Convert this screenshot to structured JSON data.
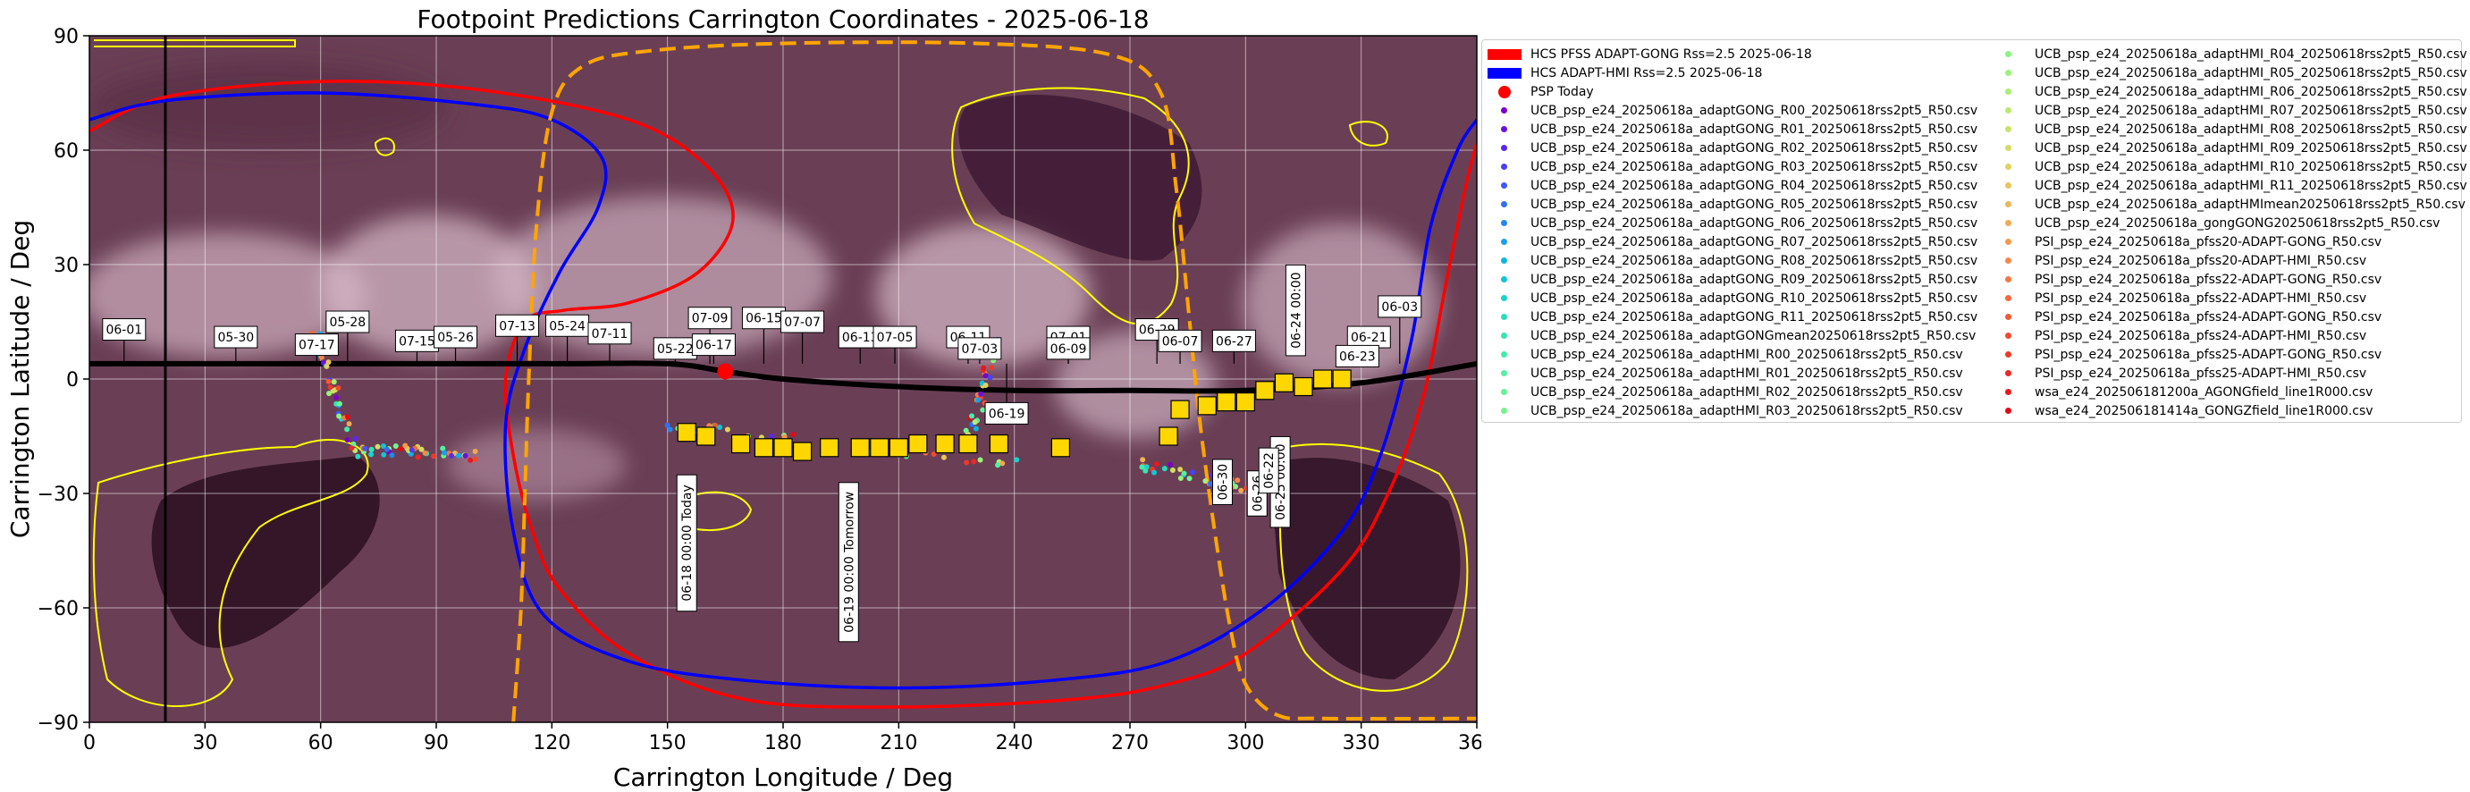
{
  "chart_data": {
    "type": "scatter",
    "title": "Footpoint Predictions Carrington Coordinates - 2025-06-18",
    "xlabel": "Carrington Longitude / Deg",
    "ylabel": "Carrington Latitude / Deg",
    "xlim": [
      0,
      360
    ],
    "ylim": [
      -90,
      90
    ],
    "xticks": [
      "0",
      "30",
      "60",
      "90",
      "120",
      "150",
      "180",
      "210",
      "240",
      "270",
      "300",
      "330",
      "360"
    ],
    "yticks": [
      "90",
      "60",
      "30",
      "0",
      "−30",
      "−60",
      "−90"
    ],
    "grid": true,
    "background": "coronal EUV synoptic map with yellow coronal-hole contours",
    "colors": {
      "hcs_gong": "#ff0000",
      "hcs_hmi": "#0000ff",
      "hcs_dashed": "#ffa500",
      "psp_today": "#ff0000",
      "markers": "#ffd700",
      "contours": "#ffff00"
    },
    "hcs_lines": [
      {
        "name": "HCS PFSS ADAPT-GONG Rss=2.5 2025-06-18",
        "color": "#ff0000",
        "points": [
          [
            0,
            65
          ],
          [
            20,
            74
          ],
          [
            60,
            78
          ],
          [
            100,
            76
          ],
          [
            140,
            68
          ],
          [
            160,
            56
          ],
          [
            167,
            42
          ],
          [
            158,
            28
          ],
          [
            140,
            20
          ],
          [
            123,
            18
          ],
          [
            113,
            15
          ],
          [
            108,
            0
          ],
          [
            110,
            -20
          ],
          [
            115,
            -40
          ],
          [
            122,
            -55
          ],
          [
            140,
            -72
          ],
          [
            170,
            -84
          ],
          [
            210,
            -86
          ],
          [
            255,
            -84
          ],
          [
            280,
            -80
          ],
          [
            300,
            -72
          ],
          [
            325,
            -50
          ],
          [
            337,
            -30
          ],
          [
            346,
            -5
          ],
          [
            352,
            25
          ],
          [
            357,
            50
          ],
          [
            360,
            62
          ]
        ]
      },
      {
        "name": "HCS ADAPT-HMI Rss=2.5 2025-06-18",
        "color": "#0000ff",
        "points": [
          [
            0,
            68
          ],
          [
            20,
            73
          ],
          [
            60,
            75
          ],
          [
            100,
            72
          ],
          [
            120,
            68
          ],
          [
            133,
            58
          ],
          [
            132,
            45
          ],
          [
            122,
            28
          ],
          [
            113,
            8
          ],
          [
            108,
            -12
          ],
          [
            110,
            -40
          ],
          [
            118,
            -62
          ],
          [
            140,
            -74
          ],
          [
            170,
            -79
          ],
          [
            210,
            -81
          ],
          [
            250,
            -79
          ],
          [
            280,
            -74
          ],
          [
            305,
            -60
          ],
          [
            325,
            -40
          ],
          [
            335,
            -20
          ],
          [
            343,
            10
          ],
          [
            348,
            40
          ],
          [
            355,
            60
          ],
          [
            360,
            68
          ]
        ]
      },
      {
        "name": "",
        "color": "#ffa500",
        "dashed": true,
        "points": [
          [
            110,
            -90
          ],
          [
            112,
            -60
          ],
          [
            113,
            -30
          ],
          [
            114,
            0
          ],
          [
            116,
            40
          ],
          [
            120,
            70
          ],
          [
            128,
            82
          ],
          [
            145,
            86
          ],
          [
            180,
            88
          ],
          [
            230,
            88
          ],
          [
            265,
            85
          ],
          [
            278,
            75
          ],
          [
            282,
            50
          ],
          [
            285,
            20
          ],
          [
            288,
            -10
          ],
          [
            292,
            -40
          ],
          [
            296,
            -65
          ],
          [
            300,
            -80
          ],
          [
            308,
            -88
          ],
          [
            320,
            -89
          ],
          [
            360,
            -89
          ]
        ]
      }
    ],
    "psp_today": [
      165,
      2
    ],
    "psp_track": [
      [
        0,
        4
      ],
      [
        60,
        4
      ],
      [
        120,
        4
      ],
      [
        150,
        4
      ],
      [
        165,
        2
      ],
      [
        180,
        0
      ],
      [
        210,
        -2
      ],
      [
        240,
        -3
      ],
      [
        270,
        -3
      ],
      [
        300,
        -3
      ],
      [
        330,
        -1
      ],
      [
        360,
        4
      ]
    ],
    "date_labels": [
      {
        "text": "06-01",
        "x": 9,
        "y": 13
      },
      {
        "text": "05-30",
        "x": 38,
        "y": 11
      },
      {
        "text": "05-28",
        "x": 67,
        "y": 15
      },
      {
        "text": "07-17",
        "x": 59,
        "y": 9
      },
      {
        "text": "07-15",
        "x": 85,
        "y": 10
      },
      {
        "text": "05-26",
        "x": 95,
        "y": 11
      },
      {
        "text": "07-13",
        "x": 111,
        "y": 14
      },
      {
        "text": "05-24",
        "x": 124,
        "y": 14
      },
      {
        "text": "07-11",
        "x": 135,
        "y": 12
      },
      {
        "text": "05-22",
        "x": 152,
        "y": 8
      },
      {
        "text": "07-09",
        "x": 161,
        "y": 16
      },
      {
        "text": "06-17",
        "x": 162,
        "y": 9
      },
      {
        "text": "06-15",
        "x": 175,
        "y": 16
      },
      {
        "text": "07-07",
        "x": 185,
        "y": 15
      },
      {
        "text": "06-13",
        "x": 200,
        "y": 11
      },
      {
        "text": "07-05",
        "x": 209,
        "y": 11
      },
      {
        "text": "06-11",
        "x": 228,
        "y": 11
      },
      {
        "text": "07-03",
        "x": 231,
        "y": 8
      },
      {
        "text": "07-01",
        "x": 254,
        "y": 11
      },
      {
        "text": "06-09",
        "x": 254,
        "y": 8
      },
      {
        "text": "06-29",
        "x": 277,
        "y": 13
      },
      {
        "text": "06-07",
        "x": 283,
        "y": 10
      },
      {
        "text": "06-27",
        "x": 297,
        "y": 10
      },
      {
        "text": "06-21",
        "x": 332,
        "y": 11
      },
      {
        "text": "06-23",
        "x": 329,
        "y": 6
      },
      {
        "text": "06-03",
        "x": 340,
        "y": 19
      },
      {
        "text": "06-19",
        "x": 238,
        "y": -9
      }
    ],
    "vertical_labels": [
      {
        "text": "06-18 00:00 Today",
        "x": 155,
        "y": -43
      },
      {
        "text": "06-19 00:00 Tomorrow",
        "x": 197,
        "y": -48
      },
      {
        "text": "06-24 00:00",
        "x": 313,
        "y": 18
      },
      {
        "text": "06-30",
        "x": 294,
        "y": -27
      },
      {
        "text": "06-26",
        "x": 303,
        "y": -30
      },
      {
        "text": "06-25 00:00",
        "x": 309,
        "y": -27
      },
      {
        "text": "06-22",
        "x": 306,
        "y": -24
      }
    ],
    "markers": [
      [
        155,
        -14
      ],
      [
        160,
        -15
      ],
      [
        169,
        -17
      ],
      [
        175,
        -18
      ],
      [
        180,
        -18
      ],
      [
        185,
        -19
      ],
      [
        192,
        -18
      ],
      [
        200,
        -18
      ],
      [
        205,
        -18
      ],
      [
        210,
        -18
      ],
      [
        215,
        -17
      ],
      [
        222,
        -17
      ],
      [
        228,
        -17
      ],
      [
        236,
        -17
      ],
      [
        252,
        -18
      ],
      [
        280,
        -15
      ],
      [
        283,
        -8
      ],
      [
        290,
        -7
      ],
      [
        295,
        -6
      ],
      [
        300,
        -6
      ],
      [
        305,
        -3
      ],
      [
        310,
        -1
      ],
      [
        315,
        -2
      ],
      [
        320,
        0
      ],
      [
        325,
        0
      ]
    ],
    "legend": {
      "col1": [
        {
          "label": "HCS PFSS ADAPT-GONG Rss=2.5 2025-06-18",
          "kind": "line",
          "color": "#ff0000"
        },
        {
          "label": "HCS ADAPT-HMI Rss=2.5 2025-06-18",
          "kind": "line",
          "color": "#0000ff"
        },
        {
          "label": "PSP Today",
          "kind": "bigdot",
          "color": "#ff0000"
        },
        {
          "label": "UCB_psp_e24_20250618a_adaptGONG_R00_20250618rss2pt5_R50.csv",
          "kind": "dot",
          "color": "#7a00c8"
        },
        {
          "label": "UCB_psp_e24_20250618a_adaptGONG_R01_20250618rss2pt5_R50.csv",
          "kind": "dot",
          "color": "#6a10e0"
        },
        {
          "label": "UCB_psp_e24_20250618a_adaptGONG_R02_20250618rss2pt5_R50.csv",
          "kind": "dot",
          "color": "#5a28f0"
        },
        {
          "label": "UCB_psp_e24_20250618a_adaptGONG_R03_20250618rss2pt5_R50.csv",
          "kind": "dot",
          "color": "#4a40f6"
        },
        {
          "label": "UCB_psp_e24_20250618a_adaptGONG_R04_20250618rss2pt5_R50.csv",
          "kind": "dot",
          "color": "#3c58f8"
        },
        {
          "label": "UCB_psp_e24_20250618a_adaptGONG_R05_20250618rss2pt5_R50.csv",
          "kind": "dot",
          "color": "#2e70f6"
        },
        {
          "label": "UCB_psp_e24_20250618a_adaptGONG_R06_20250618rss2pt5_R50.csv",
          "kind": "dot",
          "color": "#2288f0"
        },
        {
          "label": "UCB_psp_e24_20250618a_adaptGONG_R07_20250618rss2pt5_R50.csv",
          "kind": "dot",
          "color": "#18a0e8"
        },
        {
          "label": "UCB_psp_e24_20250618a_adaptGONG_R08_20250618rss2pt5_R50.csv",
          "kind": "dot",
          "color": "#10b4e0"
        },
        {
          "label": "UCB_psp_e24_20250618a_adaptGONG_R09_20250618rss2pt5_R50.csv",
          "kind": "dot",
          "color": "#12c4d6"
        },
        {
          "label": "UCB_psp_e24_20250618a_adaptGONG_R10_20250618rss2pt5_R50.csv",
          "kind": "dot",
          "color": "#1ad2cc"
        },
        {
          "label": "UCB_psp_e24_20250618a_adaptGONG_R11_20250618rss2pt5_R50.csv",
          "kind": "dot",
          "color": "#28dcc0"
        },
        {
          "label": "UCB_psp_e24_20250618a_adaptGONGmean20250618rss2pt5_R50.csv",
          "kind": "dot",
          "color": "#36e4b4"
        },
        {
          "label": "UCB_psp_e24_20250618a_adaptHMI_R00_20250618rss2pt5_R50.csv",
          "kind": "dot",
          "color": "#44ecaa"
        },
        {
          "label": "UCB_psp_e24_20250618a_adaptHMI_R01_20250618rss2pt5_R50.csv",
          "kind": "dot",
          "color": "#54f0a0"
        },
        {
          "label": "UCB_psp_e24_20250618a_adaptHMI_R02_20250618rss2pt5_R50.csv",
          "kind": "dot",
          "color": "#64f296"
        },
        {
          "label": "UCB_psp_e24_20250618a_adaptHMI_R03_20250618rss2pt5_R50.csv",
          "kind": "dot",
          "color": "#76f48c"
        }
      ],
      "col2": [
        {
          "label": "UCB_psp_e24_20250618a_adaptHMI_R04_20250618rss2pt5_R50.csv",
          "kind": "dot",
          "color": "#88f482"
        },
        {
          "label": "UCB_psp_e24_20250618a_adaptHMI_R05_20250618rss2pt5_R50.csv",
          "kind": "dot",
          "color": "#9af27a"
        },
        {
          "label": "UCB_psp_e24_20250618a_adaptHMI_R06_20250618rss2pt5_R50.csv",
          "kind": "dot",
          "color": "#acee72"
        },
        {
          "label": "UCB_psp_e24_20250618a_adaptHMI_R07_20250618rss2pt5_R50.csv",
          "kind": "dot",
          "color": "#bce86c"
        },
        {
          "label": "UCB_psp_e24_20250618a_adaptHMI_R08_20250618rss2pt5_R50.csv",
          "kind": "dot",
          "color": "#cae266"
        },
        {
          "label": "UCB_psp_e24_20250618a_adaptHMI_R09_20250618rss2pt5_R50.csv",
          "kind": "dot",
          "color": "#d6da62"
        },
        {
          "label": "UCB_psp_e24_20250618a_adaptHMI_R10_20250618rss2pt5_R50.csv",
          "kind": "dot",
          "color": "#e0d05e"
        },
        {
          "label": "UCB_psp_e24_20250618a_adaptHMI_R11_20250618rss2pt5_R50.csv",
          "kind": "dot",
          "color": "#e8c45a"
        },
        {
          "label": "UCB_psp_e24_20250618a_adaptHMImean20250618rss2pt5_R50.csv",
          "kind": "dot",
          "color": "#eeb656"
        },
        {
          "label": "UCB_psp_e24_20250618a_gongGONG20250618rss2pt5_R50.csv",
          "kind": "dot",
          "color": "#f2a852"
        },
        {
          "label": "PSI_psp_e24_20250618a_pfss20-ADAPT-GONG_R50.csv",
          "kind": "dot",
          "color": "#f4984c"
        },
        {
          "label": "PSI_psp_e24_20250618a_pfss20-ADAPT-HMI_R50.csv",
          "kind": "dot",
          "color": "#f68846"
        },
        {
          "label": "PSI_psp_e24_20250618a_pfss22-ADAPT-GONG_R50.csv",
          "kind": "dot",
          "color": "#f67840"
        },
        {
          "label": "PSI_psp_e24_20250618a_pfss22-ADAPT-HMI_R50.csv",
          "kind": "dot",
          "color": "#f6683a"
        },
        {
          "label": "PSI_psp_e24_20250618a_pfss24-ADAPT-GONG_R50.csv",
          "kind": "dot",
          "color": "#f45834"
        },
        {
          "label": "PSI_psp_e24_20250618a_pfss24-ADAPT-HMI_R50.csv",
          "kind": "dot",
          "color": "#f2482e"
        },
        {
          "label": "PSI_psp_e24_20250618a_pfss25-ADAPT-GONG_R50.csv",
          "kind": "dot",
          "color": "#f03828"
        },
        {
          "label": "PSI_psp_e24_20250618a_pfss25-ADAPT-HMI_R50.csv",
          "kind": "dot",
          "color": "#ec2822"
        },
        {
          "label": "wsa_e24_202506181200a_AGONGfield_line1R000.csv",
          "kind": "dot",
          "color": "#e8181c"
        },
        {
          "label": "wsa_e24_202506181414a_GONGZfield_line1R000.csv",
          "kind": "dot",
          "color": "#e40816"
        }
      ]
    }
  }
}
